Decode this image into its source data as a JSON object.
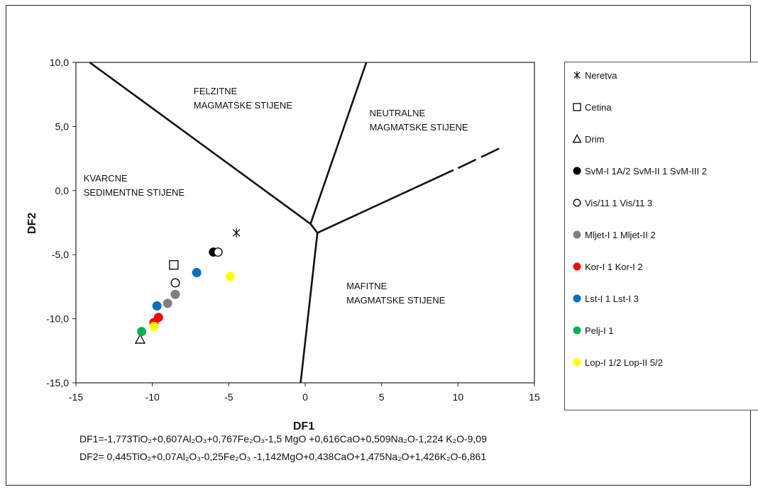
{
  "chart_data": {
    "type": "scatter",
    "title": "",
    "xlabel": "DF1",
    "ylabel": "DF2",
    "xlim": [
      -15,
      15
    ],
    "ylim": [
      -15,
      10
    ],
    "x_ticks": [
      "-15",
      "-10",
      "-5",
      "0",
      "5",
      "10",
      "15"
    ],
    "y_ticks": [
      "10,0",
      "5,0",
      "0,0",
      "-5,0",
      "-10,0",
      "-15,0"
    ],
    "grid": false,
    "legend_position": "right",
    "boundary_lines": [
      {
        "name": "felzitne-kvarcne",
        "points": [
          [
            -14.1,
            10.0
          ],
          [
            0.35,
            -2.6
          ]
        ],
        "dashed": false
      },
      {
        "name": "felzitne-neutralne",
        "points": [
          [
            0.35,
            -2.6
          ],
          [
            4.0,
            10.0
          ]
        ],
        "dashed": false
      },
      {
        "name": "junction",
        "points": [
          [
            0.35,
            -2.6
          ],
          [
            0.8,
            -3.3
          ]
        ],
        "dashed": false
      },
      {
        "name": "neutralne-mafitne",
        "points": [
          [
            0.8,
            -3.3
          ],
          [
            9.7,
            1.6
          ]
        ],
        "dashed": false
      },
      {
        "name": "neutralne-mafitne-extension",
        "points": [
          [
            10.0,
            1.75
          ],
          [
            12.9,
            3.4
          ]
        ],
        "dashed": true
      },
      {
        "name": "kvarcne-mafitne",
        "points": [
          [
            0.8,
            -3.3
          ],
          [
            -0.3,
            -15.0
          ]
        ],
        "dashed": false
      }
    ],
    "region_labels": [
      {
        "lines": [
          "FELZITNE",
          "MAGMATSKE STIJENE"
        ],
        "x": -7.3,
        "y": 7.5
      },
      {
        "lines": [
          "NEUTRALNE",
          "MAGMATSKE STIJENE"
        ],
        "x": 4.2,
        "y": 5.8
      },
      {
        "lines": [
          "KVARCNE",
          "SEDIMENTNE  STIJENE"
        ],
        "x": -14.5,
        "y": 0.7
      },
      {
        "lines": [
          "MAFITNE",
          "MAGMATSKE STIJENE"
        ],
        "x": 2.7,
        "y": -7.7
      }
    ],
    "series": [
      {
        "name": "Neretva",
        "marker": "asterisk",
        "color": "#000000",
        "points": [
          [
            -4.5,
            -3.3
          ]
        ]
      },
      {
        "name": "Cetina",
        "marker": "square-open",
        "color": "#000000",
        "points": [
          [
            -8.6,
            -5.8
          ]
        ]
      },
      {
        "name": "Drim",
        "marker": "triangle-open",
        "color": "#000000",
        "points": [
          [
            -10.8,
            -11.6
          ]
        ]
      },
      {
        "name": "SvM-I 1A/2 SvM-II 1 SvM-III 2",
        "marker": "circle",
        "color": "#000000",
        "points": [
          [
            -6.0,
            -4.8
          ]
        ]
      },
      {
        "name": "Vis/11 1 Vis/11 3",
        "marker": "circle-open",
        "color": "#000000",
        "points": [
          [
            -5.7,
            -4.8
          ],
          [
            -8.5,
            -7.2
          ]
        ]
      },
      {
        "name": "Mljet-I 1 Mljet-II 2",
        "marker": "circle",
        "color": "#808080",
        "points": [
          [
            -8.5,
            -8.1
          ],
          [
            -9.0,
            -8.8
          ]
        ]
      },
      {
        "name": "Kor-I 1 Kor-I 2",
        "marker": "circle",
        "color": "#ff0000",
        "points": [
          [
            -9.6,
            -9.9
          ],
          [
            -9.9,
            -10.3
          ]
        ]
      },
      {
        "name": "Lst-I 1 Lst-I 3",
        "marker": "circle",
        "color": "#0070c0",
        "points": [
          [
            -7.1,
            -6.4
          ],
          [
            -9.7,
            -9.0
          ]
        ]
      },
      {
        "name": "Pelj-I 1",
        "marker": "circle",
        "color": "#00b050",
        "points": [
          [
            -10.7,
            -11.0
          ]
        ]
      },
      {
        "name": "Lop-I 1/2 Lop-II 5/2",
        "marker": "circle",
        "color": "#ffff00",
        "points": [
          [
            -4.9,
            -6.7
          ],
          [
            -9.9,
            -10.6
          ]
        ]
      }
    ]
  },
  "formulas": [
    "DF1=-1,773TiO₂+0,607Al₂O₃+0,767Fe₂O₃-1,5 MgO +0,616CaO+0,509Na₂O-1,224 K₂O-9,09",
    "DF2= 0,445TiO₂+0,07Al₂O₃-0,25Fe₂O₃ -1,142MgO+0,438CaO+1,475Na₂O+1,426K₂O-6,861"
  ]
}
